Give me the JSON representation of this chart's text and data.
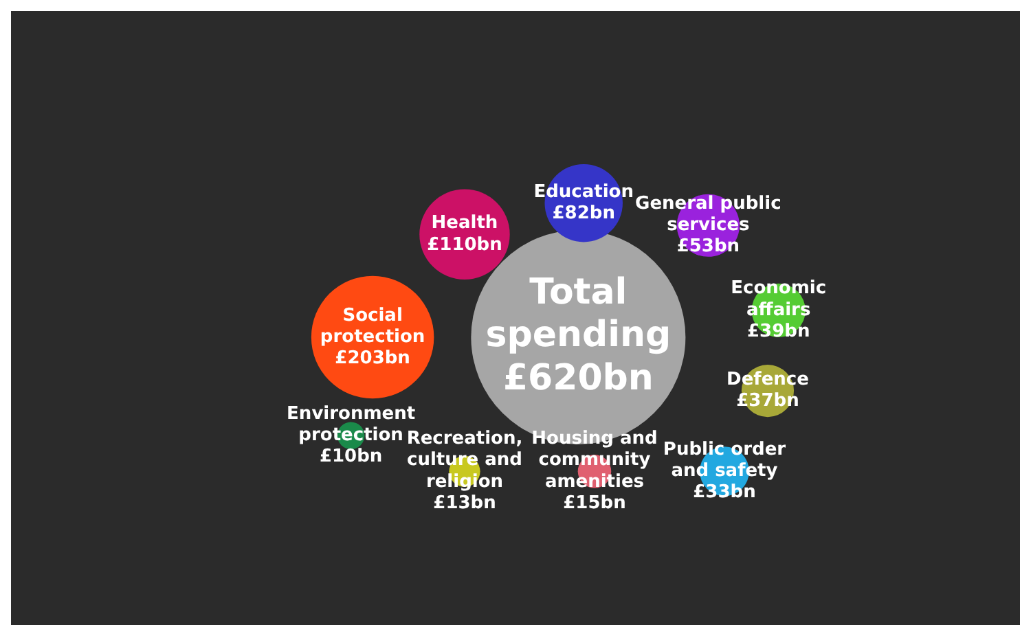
{
  "chart_data": {
    "type": "other",
    "categories": [
      "Total spending",
      "Social protection",
      "Health",
      "Education",
      "General public services",
      "Economic affairs",
      "Defence",
      "Public order and safety",
      "Housing and community amenities",
      "Recreation, culture and religion",
      "Environment protection"
    ],
    "values": [
      620,
      203,
      110,
      82,
      53,
      39,
      37,
      33,
      15,
      13,
      10
    ],
    "value_labels": [
      "£620bn",
      "£203bn",
      "£110bn",
      "£82bn",
      "£53bn",
      "£39bn",
      "£37bn",
      "£33bn",
      "£15bn",
      "£13bn",
      "£10bn"
    ],
    "colors": [
      "#a6a6a6",
      "#ff4a12",
      "#cc1166",
      "#3535c8",
      "#9a22dd",
      "#55cc33",
      "#a8a838",
      "#22a8e0",
      "#e06070",
      "#c8c820",
      "#1a8a4a"
    ]
  }
}
